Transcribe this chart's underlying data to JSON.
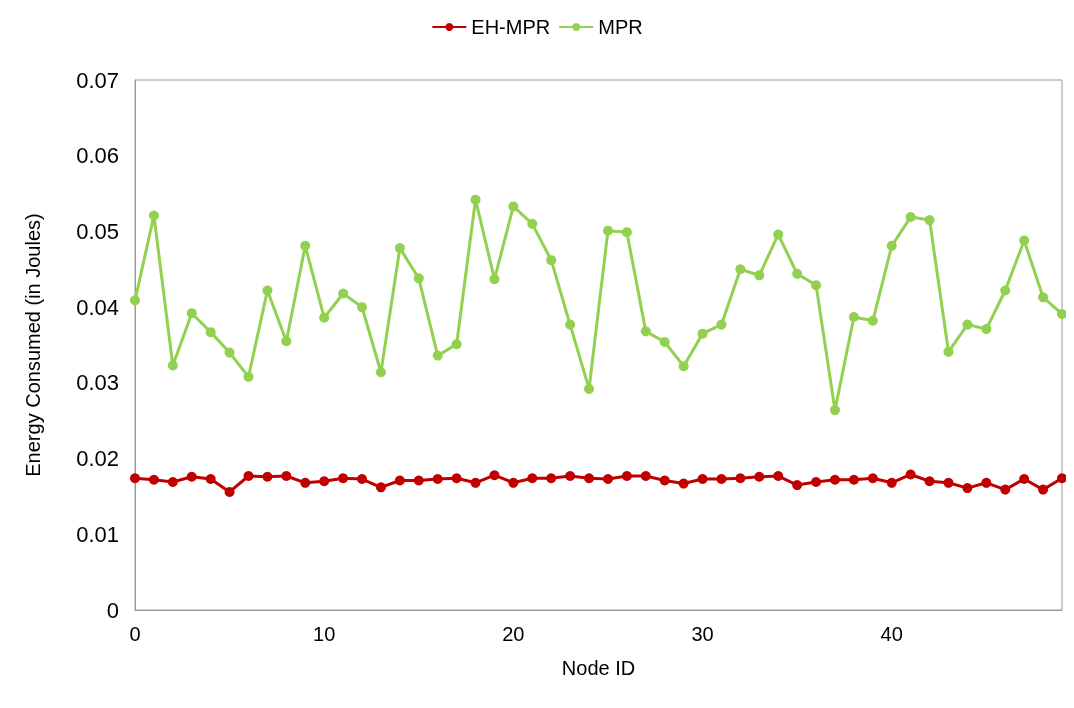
{
  "chart_data": {
    "type": "line",
    "xlabel": "Node ID",
    "ylabel": "Energy Consumed (in Joules)",
    "x": [
      0,
      1,
      2,
      3,
      4,
      5,
      6,
      7,
      8,
      9,
      10,
      11,
      12,
      13,
      14,
      15,
      16,
      17,
      18,
      19,
      20,
      21,
      22,
      23,
      24,
      25,
      26,
      27,
      28,
      29,
      30,
      31,
      32,
      33,
      34,
      35,
      36,
      37,
      38,
      39,
      40,
      41,
      42,
      43,
      44,
      45,
      46,
      47,
      48,
      49
    ],
    "series": [
      {
        "name": "EH-MPR",
        "color": "#c00000",
        "values": [
          0.0174,
          0.0172,
          0.0169,
          0.0176,
          0.0173,
          0.0156,
          0.0177,
          0.0176,
          0.0177,
          0.0168,
          0.017,
          0.0174,
          0.0173,
          0.0162,
          0.0171,
          0.0171,
          0.0173,
          0.0174,
          0.0168,
          0.0178,
          0.0168,
          0.0174,
          0.0174,
          0.0177,
          0.0174,
          0.0173,
          0.0177,
          0.0177,
          0.0171,
          0.0167,
          0.0173,
          0.0173,
          0.0174,
          0.0176,
          0.0177,
          0.0165,
          0.0169,
          0.0172,
          0.0172,
          0.0174,
          0.0168,
          0.0179,
          0.017,
          0.0168,
          0.0161,
          0.0168,
          0.0159,
          0.0173,
          0.0159,
          0.0174
        ]
      },
      {
        "name": "MPR",
        "color": "#92d050",
        "values": [
          0.0409,
          0.0521,
          0.0323,
          0.0392,
          0.0367,
          0.034,
          0.0308,
          0.0422,
          0.0355,
          0.0481,
          0.0386,
          0.0418,
          0.04,
          0.0314,
          0.0478,
          0.0438,
          0.0336,
          0.0351,
          0.0542,
          0.0437,
          0.0533,
          0.051,
          0.0462,
          0.0377,
          0.0292,
          0.0501,
          0.0499,
          0.0368,
          0.0354,
          0.0322,
          0.0365,
          0.0377,
          0.045,
          0.0442,
          0.0496,
          0.0444,
          0.0429,
          0.0264,
          0.0387,
          0.0382,
          0.0481,
          0.0519,
          0.0515,
          0.0341,
          0.0377,
          0.0371,
          0.0422,
          0.0488,
          0.0413,
          0.0391
        ]
      }
    ],
    "xlim": [
      0,
      49
    ],
    "xticks": [
      0,
      10,
      20,
      30,
      40
    ],
    "ylim": [
      0,
      0.07
    ],
    "yticks": [
      0,
      0.01,
      0.02,
      0.03,
      0.04,
      0.05,
      0.06,
      0.07
    ],
    "grid": false,
    "legend": "top",
    "marker": "circle",
    "line_style": "solid"
  }
}
